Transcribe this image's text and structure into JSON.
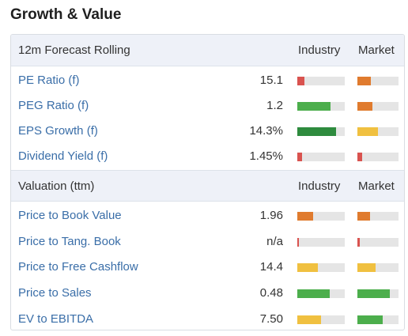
{
  "title": "Growth & Value",
  "sections": [
    {
      "header": "12m Forecast Rolling",
      "industry_label": "Industry",
      "market_label": "Market",
      "rows": [
        {
          "label": "PE Ratio (f)",
          "value": "15.1",
          "industry": {
            "level": 0.15,
            "color": "#d9534f"
          },
          "market": {
            "level": 0.33,
            "color": "#e07b2e"
          }
        },
        {
          "label": "PEG Ratio (f)",
          "value": "1.2",
          "industry": {
            "level": 0.7,
            "color": "#4cae4c"
          },
          "market": {
            "level": 0.37,
            "color": "#e07b2e"
          }
        },
        {
          "label": "EPS Growth (f)",
          "value": "14.3%",
          "industry": {
            "level": 0.82,
            "color": "#2e8b3e"
          },
          "market": {
            "level": 0.5,
            "color": "#f0c040"
          }
        },
        {
          "label": "Dividend Yield (f)",
          "value": "1.45%",
          "industry": {
            "level": 0.1,
            "color": "#d9534f"
          },
          "market": {
            "level": 0.12,
            "color": "#d9534f"
          }
        }
      ]
    },
    {
      "header": "Valuation (ttm)",
      "industry_label": "Industry",
      "market_label": "Market",
      "rows": [
        {
          "label": "Price to Book Value",
          "value": "1.96",
          "industry": {
            "level": 0.33,
            "color": "#e07b2e"
          },
          "market": {
            "level": 0.31,
            "color": "#e07b2e"
          }
        },
        {
          "label": "Price to Tang. Book",
          "value": "n/a",
          "industry": {
            "level": 0.03,
            "color": "#d9534f"
          },
          "market": {
            "level": 0.06,
            "color": "#d9534f"
          }
        },
        {
          "label": "Price to Free Cashflow",
          "value": "14.4",
          "industry": {
            "level": 0.43,
            "color": "#f0c040"
          },
          "market": {
            "level": 0.44,
            "color": "#f0c040"
          }
        },
        {
          "label": "Price to Sales",
          "value": "0.48",
          "industry": {
            "level": 0.68,
            "color": "#4cae4c"
          },
          "market": {
            "level": 0.79,
            "color": "#4cae4c"
          }
        },
        {
          "label": "EV to EBITDA",
          "value": "7.50",
          "industry": {
            "level": 0.5,
            "color": "#f0c040"
          },
          "market": {
            "level": 0.62,
            "color": "#4cae4c"
          }
        }
      ]
    }
  ]
}
